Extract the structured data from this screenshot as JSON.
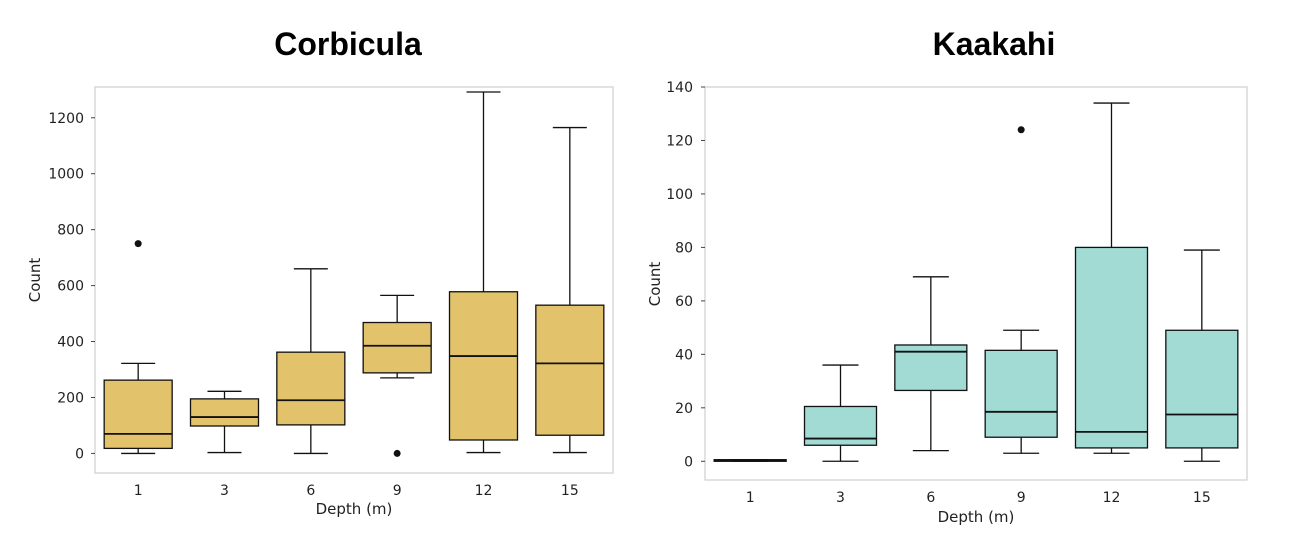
{
  "chart_data": [
    {
      "type": "box",
      "title": "Corbicula",
      "xlabel": "Depth (m)",
      "ylabel": "Count",
      "ylim": [
        -70,
        1310
      ],
      "yticks": [
        0,
        200,
        400,
        600,
        800,
        1000,
        1200
      ],
      "categories": [
        "1",
        "3",
        "6",
        "9",
        "12",
        "15"
      ],
      "box_color": "#e2c36b",
      "boxes": [
        {
          "category": "1",
          "whisker_low": 0,
          "q1": 18,
          "median": 70,
          "q3": 262,
          "whisker_high": 322,
          "outliers": [
            750
          ]
        },
        {
          "category": "3",
          "whisker_low": 3,
          "q1": 98,
          "median": 130,
          "q3": 195,
          "whisker_high": 222,
          "outliers": []
        },
        {
          "category": "6",
          "whisker_low": 0,
          "q1": 102,
          "median": 190,
          "q3": 362,
          "whisker_high": 660,
          "outliers": []
        },
        {
          "category": "9",
          "whisker_low": 270,
          "q1": 288,
          "median": 385,
          "q3": 468,
          "whisker_high": 565,
          "outliers": [
            0
          ]
        },
        {
          "category": "12",
          "whisker_low": 3,
          "q1": 48,
          "median": 348,
          "q3": 578,
          "whisker_high": 1292,
          "outliers": []
        },
        {
          "category": "15",
          "whisker_low": 3,
          "q1": 65,
          "median": 322,
          "q3": 530,
          "whisker_high": 1165,
          "outliers": []
        }
      ]
    },
    {
      "type": "box",
      "title": "Kaakahi",
      "xlabel": "Depth (m)",
      "ylabel": "Count",
      "ylim": [
        -7,
        140
      ],
      "yticks": [
        0,
        20,
        40,
        60,
        80,
        100,
        120,
        140
      ],
      "categories": [
        "1",
        "3",
        "6",
        "9",
        "12",
        "15"
      ],
      "box_color": "#a1dbd4",
      "boxes": [
        {
          "category": "1",
          "whisker_low": 0,
          "q1": 0,
          "median": 0.3,
          "q3": 0.6,
          "whisker_high": 0.6,
          "outliers": []
        },
        {
          "category": "3",
          "whisker_low": 0,
          "q1": 6,
          "median": 8.5,
          "q3": 20.5,
          "whisker_high": 36,
          "outliers": []
        },
        {
          "category": "6",
          "whisker_low": 4,
          "q1": 26.5,
          "median": 41,
          "q3": 43.5,
          "whisker_high": 69,
          "outliers": []
        },
        {
          "category": "9",
          "whisker_low": 3,
          "q1": 9,
          "median": 18.5,
          "q3": 41.5,
          "whisker_high": 49,
          "outliers": [
            124
          ]
        },
        {
          "category": "12",
          "whisker_low": 3,
          "q1": 5,
          "median": 11,
          "q3": 80,
          "whisker_high": 134,
          "outliers": []
        },
        {
          "category": "15",
          "whisker_low": 0,
          "q1": 5,
          "median": 17.5,
          "q3": 49,
          "whisker_high": 79,
          "outliers": []
        }
      ]
    }
  ]
}
